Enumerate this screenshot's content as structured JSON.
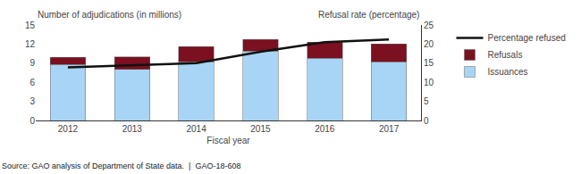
{
  "chart_data": {
    "type": "bar",
    "stacked": true,
    "categories": [
      "2012",
      "2013",
      "2014",
      "2015",
      "2016",
      "2017"
    ],
    "series": [
      {
        "name": "Issuances",
        "type": "bar",
        "color": "#a8d4f5",
        "values": [
          8.8,
          8.0,
          9.2,
          10.9,
          9.8,
          9.2
        ]
      },
      {
        "name": "Refusals",
        "type": "bar",
        "color": "#7b1020",
        "values": [
          1.1,
          2.0,
          2.4,
          1.8,
          2.5,
          2.8
        ]
      },
      {
        "name": "Percentage refused",
        "type": "line",
        "axis": "y2",
        "color": "#111111",
        "values": [
          13.9,
          14.4,
          15.0,
          18.0,
          20.5,
          21.2
        ]
      }
    ],
    "y_label": "Number of adjudications (in millions)",
    "y2_label": "Refusal rate (percentage)",
    "x_label": "Fiscal year",
    "annotations": [
      "Source: GAO analysis of Department of State data.  |  GAO-18-608"
    ],
    "ylim": [
      0,
      15
    ],
    "yticks": [
      0,
      3,
      6,
      9,
      12,
      15
    ],
    "y2lim": [
      0,
      25
    ],
    "y2ticks": [
      0,
      5,
      10,
      15,
      20,
      25
    ],
    "grid": false,
    "legend": "right"
  }
}
